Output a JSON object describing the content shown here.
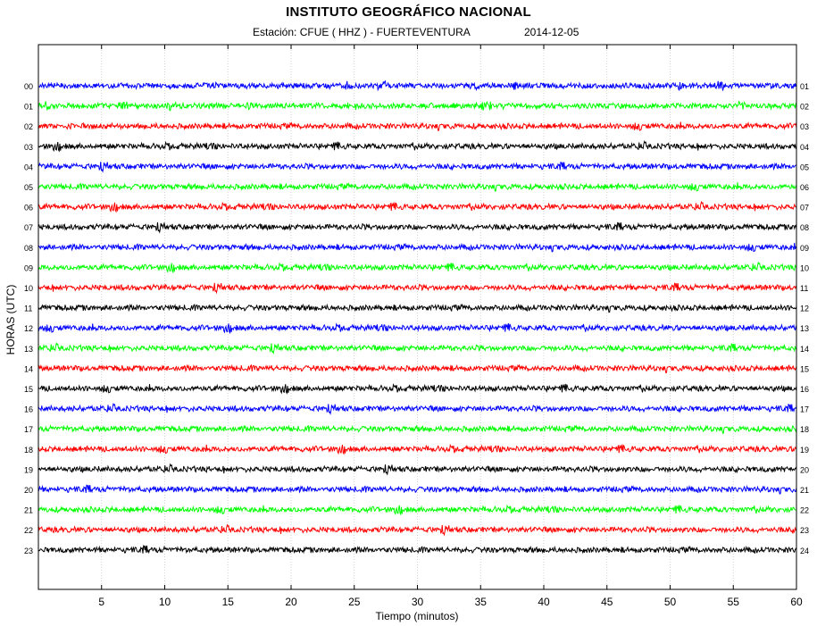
{
  "header": {
    "title": "INSTITUTO GEOGRÁFICO NACIONAL",
    "station": "Estación:  CFUE ( HHZ ) - FUERTEVENTURA",
    "date": "2014-12-05"
  },
  "chart_data": {
    "type": "line",
    "title": "INSTITUTO GEOGRÁFICO NACIONAL",
    "subtitle": "Estación:  CFUE ( HHZ ) - FUERTEVENTURA  2014-12-05",
    "xlabel": "Tiempo (minutos)",
    "ylabel": "HORAS (UTC)",
    "xlim": [
      0,
      60
    ],
    "xticks": [
      5,
      10,
      15,
      20,
      25,
      30,
      35,
      40,
      45,
      50,
      55,
      60
    ],
    "left_hour_labels": [
      "00",
      "01",
      "02",
      "03",
      "04",
      "05",
      "06",
      "07",
      "08",
      "09",
      "10",
      "11",
      "12",
      "13",
      "14",
      "15",
      "16",
      "17",
      "18",
      "19",
      "20",
      "21",
      "22",
      "23"
    ],
    "right_hour_labels": [
      "01",
      "02",
      "03",
      "04",
      "05",
      "06",
      "07",
      "08",
      "09",
      "10",
      "11",
      "12",
      "13",
      "14",
      "15",
      "16",
      "17",
      "18",
      "19",
      "20",
      "21",
      "22",
      "23",
      "24"
    ],
    "trace_colors": [
      "#0000ff",
      "#00ff00",
      "#ff0000",
      "#000000"
    ],
    "series_description": "24 hourly seismic traces (one per hour, 0-60 minutes), low-amplitude background noise, colors cycle blue, green, red, black",
    "grid": "vertical dotted lines at x tick positions"
  }
}
